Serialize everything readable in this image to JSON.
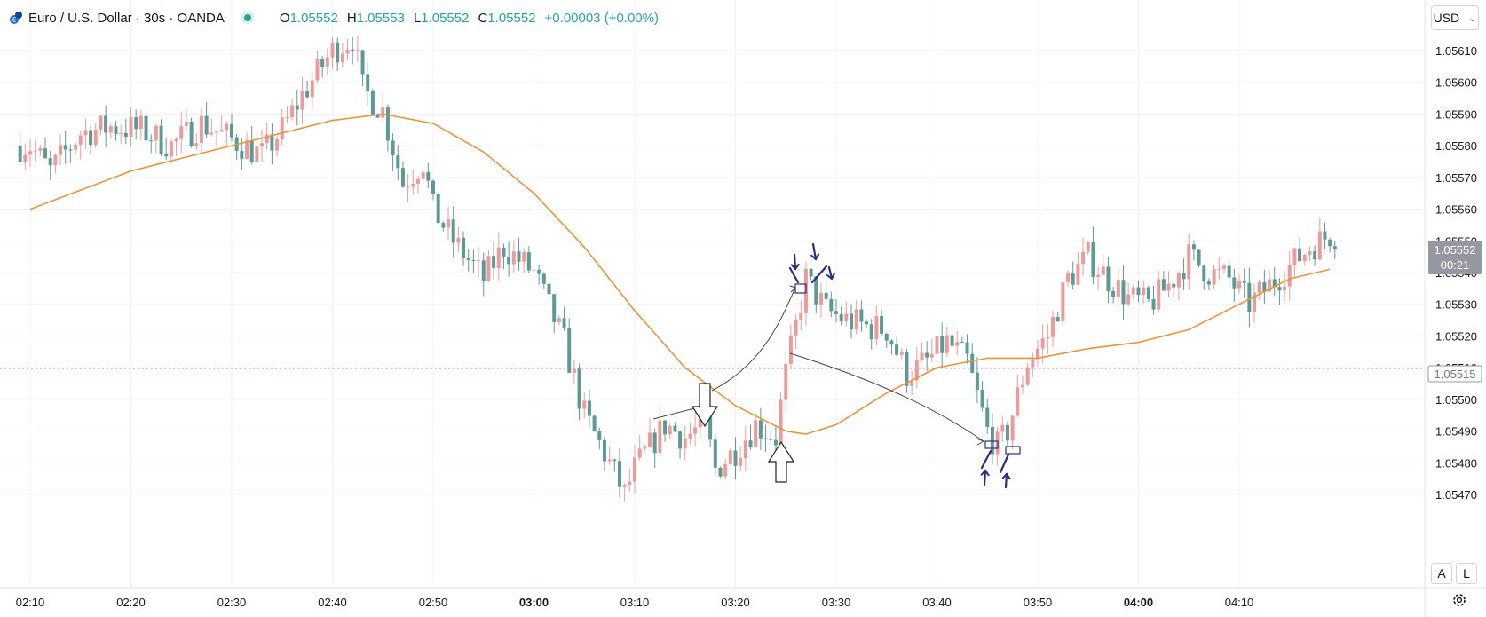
{
  "header": {
    "title": "Euro / U.S. Dollar · 30s · OANDA",
    "o_label": "O",
    "o": "1.05552",
    "h_label": "H",
    "h": "1.05553",
    "l_label": "L",
    "l": "1.05552",
    "c_label": "C",
    "c": "1.05552",
    "change": "+0.00003 (+0.00%)"
  },
  "currency_button": {
    "label": "USD"
  },
  "scale_buttons": {
    "auto": "A",
    "log": "L"
  },
  "price_tag": {
    "price": "1.05552",
    "countdown": "00:21",
    "level_price": "1.05515"
  },
  "colors": {
    "up": "#ef9a9a",
    "down": "#5b9b94",
    "ma": "#e8953a",
    "annot": "#2a2c8c",
    "grid": "#f0f3fa"
  },
  "chart_data": {
    "type": "candlestick",
    "x_axis": {
      "ticks": [
        "02:10",
        "02:20",
        "02:30",
        "02:40",
        "02:50",
        "03:00",
        "03:10",
        "03:20",
        "03:30",
        "03:40",
        "03:50",
        "04:00",
        "04:10"
      ],
      "bold_ticks": [
        "03:00",
        "04:00"
      ]
    },
    "y_axis": {
      "ticks": [
        "1.05610",
        "1.05600",
        "1.05590",
        "1.05580",
        "1.05570",
        "1.05560",
        "1.05550",
        "1.05540",
        "1.05530",
        "1.05520",
        "1.05510",
        "1.05500",
        "1.05490",
        "1.05480",
        "1.05470"
      ],
      "range": [
        1.05455,
        1.05625
      ]
    },
    "close_path": [
      [
        "02:10",
        1.0558
      ],
      [
        "02:12",
        1.05572
      ],
      [
        "02:15",
        1.05584
      ],
      [
        "02:18",
        1.05586
      ],
      [
        "02:21",
        1.05585
      ],
      [
        "02:24",
        1.0558
      ],
      [
        "02:27",
        1.05587
      ],
      [
        "02:30",
        1.05582
      ],
      [
        "02:33",
        1.05577
      ],
      [
        "02:35",
        1.05585
      ],
      [
        "02:37",
        1.05596
      ],
      [
        "02:40",
        1.0561
      ],
      [
        "02:42",
        1.05614
      ],
      [
        "02:43",
        1.05598
      ],
      [
        "02:45",
        1.05591
      ],
      [
        "02:47",
        1.05568
      ],
      [
        "02:49",
        1.05575
      ],
      [
        "02:50",
        1.0556
      ],
      [
        "02:52",
        1.0555
      ],
      [
        "02:55",
        1.05538
      ],
      [
        "02:57",
        1.05548
      ],
      [
        "03:00",
        1.0554
      ],
      [
        "03:03",
        1.05518
      ],
      [
        "03:05",
        1.05495
      ],
      [
        "03:07",
        1.05483
      ],
      [
        "03:09",
        1.0547
      ],
      [
        "03:10",
        1.05478
      ],
      [
        "03:13",
        1.05492
      ],
      [
        "03:15",
        1.05488
      ],
      [
        "03:17",
        1.05492
      ],
      [
        "03:18",
        1.05478
      ],
      [
        "03:20",
        1.05484
      ],
      [
        "03:22",
        1.05492
      ],
      [
        "03:24",
        1.05488
      ],
      [
        "03:25",
        1.05508
      ],
      [
        "03:27",
        1.05538
      ],
      [
        "03:29",
        1.05528
      ],
      [
        "03:31",
        1.05525
      ],
      [
        "03:33",
        1.05523
      ],
      [
        "03:35",
        1.05522
      ],
      [
        "03:37",
        1.05508
      ],
      [
        "03:39",
        1.05512
      ],
      [
        "03:41",
        1.05518
      ],
      [
        "03:43",
        1.05512
      ],
      [
        "03:45",
        1.0549
      ],
      [
        "03:46",
        1.05485
      ],
      [
        "03:47",
        1.0549
      ],
      [
        "03:49",
        1.05512
      ],
      [
        "03:51",
        1.0552
      ],
      [
        "03:53",
        1.05538
      ],
      [
        "03:55",
        1.05545
      ],
      [
        "03:57",
        1.05538
      ],
      [
        "03:59",
        1.05532
      ],
      [
        "04:01",
        1.0553
      ],
      [
        "04:03",
        1.05536
      ],
      [
        "04:05",
        1.05545
      ],
      [
        "04:07",
        1.0554
      ],
      [
        "04:09",
        1.05538
      ],
      [
        "04:11",
        1.0553
      ],
      [
        "04:13",
        1.05536
      ],
      [
        "04:15",
        1.05542
      ],
      [
        "04:17",
        1.05548
      ],
      [
        "04:19",
        1.05552
      ]
    ],
    "moving_average": [
      [
        "02:10",
        1.0556
      ],
      [
        "02:20",
        1.05572
      ],
      [
        "02:30",
        1.0558
      ],
      [
        "02:40",
        1.05588
      ],
      [
        "02:45",
        1.0559
      ],
      [
        "02:50",
        1.05587
      ],
      [
        "02:55",
        1.05578
      ],
      [
        "03:00",
        1.05565
      ],
      [
        "03:05",
        1.05548
      ],
      [
        "03:10",
        1.05528
      ],
      [
        "03:15",
        1.0551
      ],
      [
        "03:20",
        1.05498
      ],
      [
        "03:25",
        1.0549
      ],
      [
        "03:27",
        1.05489
      ],
      [
        "03:30",
        1.05492
      ],
      [
        "03:35",
        1.05502
      ],
      [
        "03:40",
        1.0551
      ],
      [
        "03:45",
        1.05513
      ],
      [
        "03:50",
        1.05513
      ],
      [
        "03:55",
        1.05516
      ],
      [
        "04:00",
        1.05518
      ],
      [
        "04:05",
        1.05522
      ],
      [
        "04:10",
        1.0553
      ],
      [
        "04:15",
        1.05538
      ],
      [
        "04:19",
        1.05541
      ]
    ]
  }
}
